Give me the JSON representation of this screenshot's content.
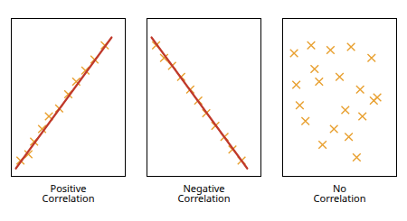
{
  "chart_data": [
    {
      "type": "scatter",
      "title": "Positive\nCorrelation",
      "xlim": [
        0,
        1
      ],
      "ylim": [
        0,
        1
      ],
      "tick_labels": false,
      "series": [
        {
          "type": "scatter",
          "marker": "x",
          "color": "#e8a030",
          "x": [
            0.08,
            0.15,
            0.2,
            0.27,
            0.33,
            0.42,
            0.5,
            0.57,
            0.65,
            0.73,
            0.82
          ],
          "values": [
            0.1,
            0.14,
            0.22,
            0.3,
            0.38,
            0.43,
            0.52,
            0.6,
            0.67,
            0.74,
            0.83
          ]
        },
        {
          "type": "line",
          "color": "#c0392b",
          "x": [
            0.04,
            0.88
          ],
          "values": [
            0.05,
            0.88
          ]
        }
      ]
    },
    {
      "type": "scatter",
      "title": "Negative\nCorrelation",
      "xlim": [
        0,
        1
      ],
      "ylim": [
        0,
        1
      ],
      "tick_labels": false,
      "series": [
        {
          "type": "scatter",
          "marker": "x",
          "color": "#e8a030",
          "x": [
            0.08,
            0.15,
            0.22,
            0.3,
            0.38,
            0.45,
            0.52,
            0.6,
            0.68,
            0.75,
            0.83
          ],
          "values": [
            0.83,
            0.75,
            0.7,
            0.63,
            0.55,
            0.48,
            0.4,
            0.32,
            0.25,
            0.17,
            0.1
          ]
        },
        {
          "type": "line",
          "color": "#c0392b",
          "x": [
            0.04,
            0.88
          ],
          "values": [
            0.88,
            0.05
          ]
        }
      ]
    },
    {
      "type": "scatter",
      "title": "No\nCorrelation",
      "xlim": [
        0,
        1
      ],
      "ylim": [
        0,
        1
      ],
      "tick_labels": false,
      "series": [
        {
          "type": "scatter",
          "marker": "x",
          "color": "#e8a030",
          "x": [
            0.1,
            0.25,
            0.42,
            0.6,
            0.78,
            0.12,
            0.32,
            0.5,
            0.68,
            0.83,
            0.2,
            0.45,
            0.7,
            0.35,
            0.58,
            0.15,
            0.55,
            0.8,
            0.28,
            0.65
          ],
          "values": [
            0.78,
            0.83,
            0.8,
            0.82,
            0.75,
            0.58,
            0.6,
            0.63,
            0.55,
            0.5,
            0.35,
            0.3,
            0.38,
            0.2,
            0.25,
            0.45,
            0.42,
            0.48,
            0.68,
            0.12
          ]
        }
      ]
    }
  ]
}
